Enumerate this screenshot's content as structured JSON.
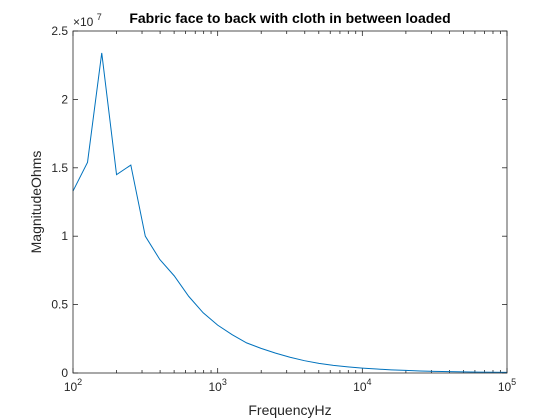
{
  "chart_data": {
    "type": "line",
    "title": "Fabric face to back with cloth in between loaded",
    "xlabel": "FrequencyHz",
    "ylabel": "MagnitudeOhms",
    "xscale": "log",
    "xlim": [
      100,
      100000
    ],
    "ylim": [
      0,
      25000000
    ],
    "y_multiplier_label": {
      "base": "×10",
      "exponent": "7"
    },
    "xticks": [
      {
        "value": 100,
        "base": "10",
        "exp": "2"
      },
      {
        "value": 1000,
        "base": "10",
        "exp": "3"
      },
      {
        "value": 10000,
        "base": "10",
        "exp": "4"
      },
      {
        "value": 100000,
        "base": "10",
        "exp": "5"
      }
    ],
    "yticks": [
      {
        "value": 0,
        "label": "0"
      },
      {
        "value": 5000000,
        "label": "0.5"
      },
      {
        "value": 10000000,
        "label": "1"
      },
      {
        "value": 15000000,
        "label": "1.5"
      },
      {
        "value": 20000000,
        "label": "2"
      },
      {
        "value": 25000000,
        "label": "2.5"
      }
    ],
    "grid": false,
    "box": true,
    "line_color": "#0072BD",
    "series": [
      {
        "x": [
          100,
          126,
          158,
          200,
          251,
          316,
          398,
          501,
          631,
          794,
          1000,
          1259,
          1585,
          1995,
          2512,
          3162,
          3981,
          5012,
          6310,
          7943,
          10000,
          12589,
          15849,
          19953,
          25119,
          31623,
          39811,
          50119,
          63096,
          79433,
          100000
        ],
        "y": [
          13300000,
          15400000,
          23400000,
          14500000,
          15200000,
          10000000,
          8300000,
          7100000,
          5600000,
          4400000,
          3500000,
          2800000,
          2200000,
          1800000,
          1450000,
          1150000,
          900000,
          700000,
          560000,
          450000,
          360000,
          290000,
          230000,
          190000,
          150000,
          120000,
          100000,
          80000,
          65000,
          55000,
          45000
        ]
      }
    ]
  }
}
